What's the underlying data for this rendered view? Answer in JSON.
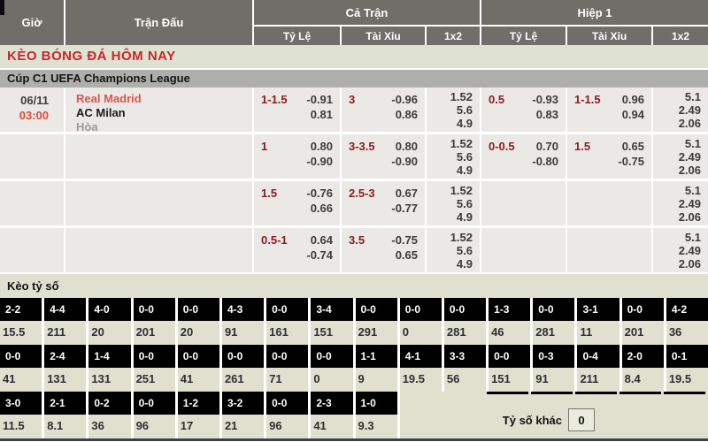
{
  "header": {
    "col_time": "Giờ",
    "col_match": "Trận Đấu",
    "col_fulltime": "Cả Trận",
    "col_firsthalf": "Hiệp 1",
    "sub_handicap_ft": "Tỷ Lệ",
    "sub_overunder_ft": "Tài Xỉu",
    "sub_1x2_ft": "1x2",
    "sub_handicap_h1": "Tỷ Lệ",
    "sub_overunder_h1": "Tài Xỉu",
    "sub_1x2_h1": "1x2"
  },
  "banner": {
    "title": "KÈO BÓNG ĐÁ HÔM NAY"
  },
  "league": {
    "title": "Cúp C1 UEFA Champions League"
  },
  "match": {
    "date": "06/11",
    "time": "03:00",
    "home": "Real Madrid",
    "away": "AC Milan",
    "draw": "Hòa"
  },
  "odds": {
    "rows": [
      {
        "ft_hdp_line": "1-1.5",
        "ft_hdp_a": "-0.91",
        "ft_hdp_b": "0.81",
        "ft_ou_line": "3",
        "ft_ou_a": "-0.96",
        "ft_ou_b": "0.86",
        "ft_1": "1.52",
        "ft_x": "5.6",
        "ft_2": "4.9",
        "h1_hdp_line": "0.5",
        "h1_hdp_a": "-0.93",
        "h1_hdp_b": "0.83",
        "h1_ou_line": "1-1.5",
        "h1_ou_a": "0.96",
        "h1_ou_b": "0.94",
        "h1_1": "5.1",
        "h1_x": "2.49",
        "h1_2": "2.06"
      },
      {
        "ft_hdp_line": "1",
        "ft_hdp_a": "0.80",
        "ft_hdp_b": "-0.90",
        "ft_ou_line": "3-3.5",
        "ft_ou_a": "0.80",
        "ft_ou_b": "-0.90",
        "ft_1": "1.52",
        "ft_x": "5.6",
        "ft_2": "4.9",
        "h1_hdp_line": "0-0.5",
        "h1_hdp_a": "0.70",
        "h1_hdp_b": "-0.80",
        "h1_ou_line": "1.5",
        "h1_ou_a": "0.65",
        "h1_ou_b": "-0.75",
        "h1_1": "5.1",
        "h1_x": "2.49",
        "h1_2": "2.06"
      },
      {
        "ft_hdp_line": "1.5",
        "ft_hdp_a": "-0.76",
        "ft_hdp_b": "0.66",
        "ft_ou_line": "2.5-3",
        "ft_ou_a": "0.67",
        "ft_ou_b": "-0.77",
        "ft_1": "1.52",
        "ft_x": "5.6",
        "ft_2": "4.9",
        "h1_hdp_line": "",
        "h1_hdp_a": "",
        "h1_hdp_b": "",
        "h1_ou_line": "",
        "h1_ou_a": "",
        "h1_ou_b": "",
        "h1_1": "5.1",
        "h1_x": "2.49",
        "h1_2": "2.06"
      },
      {
        "ft_hdp_line": "0.5-1",
        "ft_hdp_a": "0.64",
        "ft_hdp_b": "-0.74",
        "ft_ou_line": "3.5",
        "ft_ou_a": "-0.75",
        "ft_ou_b": "0.65",
        "ft_1": "1.52",
        "ft_x": "5.6",
        "ft_2": "4.9",
        "h1_hdp_line": "",
        "h1_hdp_a": "",
        "h1_hdp_b": "",
        "h1_ou_line": "",
        "h1_ou_a": "",
        "h1_ou_b": "",
        "h1_1": "5.1",
        "h1_x": "2.49",
        "h1_2": "2.06"
      }
    ]
  },
  "scores": {
    "title": "Kèo tỷ số",
    "rows": [
      [
        {
          "score": "2-2",
          "odds": "15.5"
        },
        {
          "score": "4-4",
          "odds": "211"
        },
        {
          "score": "4-0",
          "odds": "20"
        },
        {
          "score": "0-0",
          "odds": "201"
        },
        {
          "score": "0-0",
          "odds": "20"
        },
        {
          "score": "4-3",
          "odds": "91"
        },
        {
          "score": "0-0",
          "odds": "161"
        },
        {
          "score": "3-4",
          "odds": "151"
        },
        {
          "score": "0-0",
          "odds": "291"
        },
        {
          "score": "0-0",
          "odds": "0"
        },
        {
          "score": "0-0",
          "odds": "281"
        },
        {
          "score": "1-3",
          "odds": "46"
        },
        {
          "score": "0-0",
          "odds": "281"
        },
        {
          "score": "3-1",
          "odds": "11"
        },
        {
          "score": "0-0",
          "odds": "201"
        },
        {
          "score": "4-2",
          "odds": "36"
        }
      ],
      [
        {
          "score": "0-0",
          "odds": "41"
        },
        {
          "score": "2-4",
          "odds": "131"
        },
        {
          "score": "1-4",
          "odds": "131"
        },
        {
          "score": "0-0",
          "odds": "251"
        },
        {
          "score": "0-0",
          "odds": "41"
        },
        {
          "score": "0-0",
          "odds": "261"
        },
        {
          "score": "0-0",
          "odds": "71"
        },
        {
          "score": "0-0",
          "odds": "0"
        },
        {
          "score": "1-1",
          "odds": "9"
        },
        {
          "score": "4-1",
          "odds": "19.5"
        },
        {
          "score": "3-3",
          "odds": "56"
        },
        {
          "score": "0-0",
          "odds": "151"
        },
        {
          "score": "0-3",
          "odds": "91"
        },
        {
          "score": "0-4",
          "odds": "211"
        },
        {
          "score": "2-0",
          "odds": "8.4"
        },
        {
          "score": "0-1",
          "odds": "19.5"
        }
      ],
      [
        {
          "score": "3-0",
          "odds": "11.5"
        },
        {
          "score": "2-1",
          "odds": "8.1"
        },
        {
          "score": "0-2",
          "odds": "36"
        },
        {
          "score": "0-0",
          "odds": "96"
        },
        {
          "score": "1-2",
          "odds": "17"
        },
        {
          "score": "3-2",
          "odds": "21"
        },
        {
          "score": "0-0",
          "odds": "96"
        },
        {
          "score": "2-3",
          "odds": "41"
        },
        {
          "score": "1-0",
          "odds": "9.3"
        }
      ]
    ],
    "other_label": "Tỷ số khác",
    "other_value": "0"
  }
}
